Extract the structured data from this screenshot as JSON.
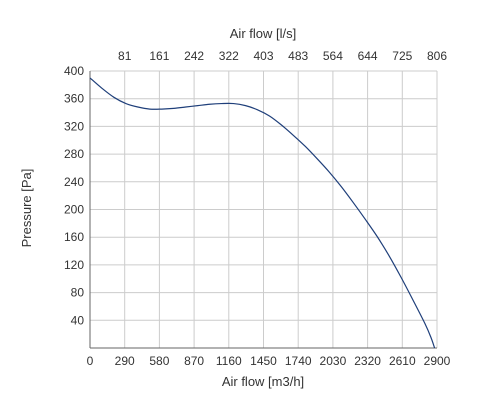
{
  "chart_data": {
    "type": "line",
    "title": "",
    "xlabel": "Air flow [m3/h]",
    "x2label": "Air flow [l/s]",
    "ylabel": "Pressure [Pa]",
    "xlim": [
      0,
      2900
    ],
    "ylim": [
      0,
      400
    ],
    "x_ticks": [
      0,
      290,
      580,
      870,
      1160,
      1450,
      1740,
      2030,
      2320,
      2610,
      2900
    ],
    "x2_ticks": [
      "81",
      "161",
      "242",
      "322",
      "403",
      "483",
      "564",
      "644",
      "725",
      "806"
    ],
    "y_ticks": [
      40,
      80,
      120,
      160,
      200,
      240,
      280,
      320,
      360,
      400
    ],
    "grid": true,
    "colors": {
      "line": "#1f3f7a",
      "grid": "#cccccc",
      "axis": "#666666"
    },
    "series": [
      {
        "x": [
          0,
          100,
          200,
          300,
          400,
          500,
          600,
          700,
          800,
          900,
          1000,
          1100,
          1200,
          1300,
          1400,
          1500,
          1600,
          1700,
          1800,
          1900,
          2000,
          2100,
          2200,
          2300,
          2400,
          2500,
          2600,
          2700,
          2800,
          2850,
          2880
        ],
        "y": [
          390,
          375,
          362,
          353,
          348,
          345,
          345,
          346,
          348,
          350,
          352,
          353,
          353,
          350,
          344,
          335,
          322,
          307,
          291,
          273,
          254,
          233,
          210,
          186,
          161,
          133,
          102,
          69,
          35,
          15,
          0
        ]
      }
    ]
  }
}
